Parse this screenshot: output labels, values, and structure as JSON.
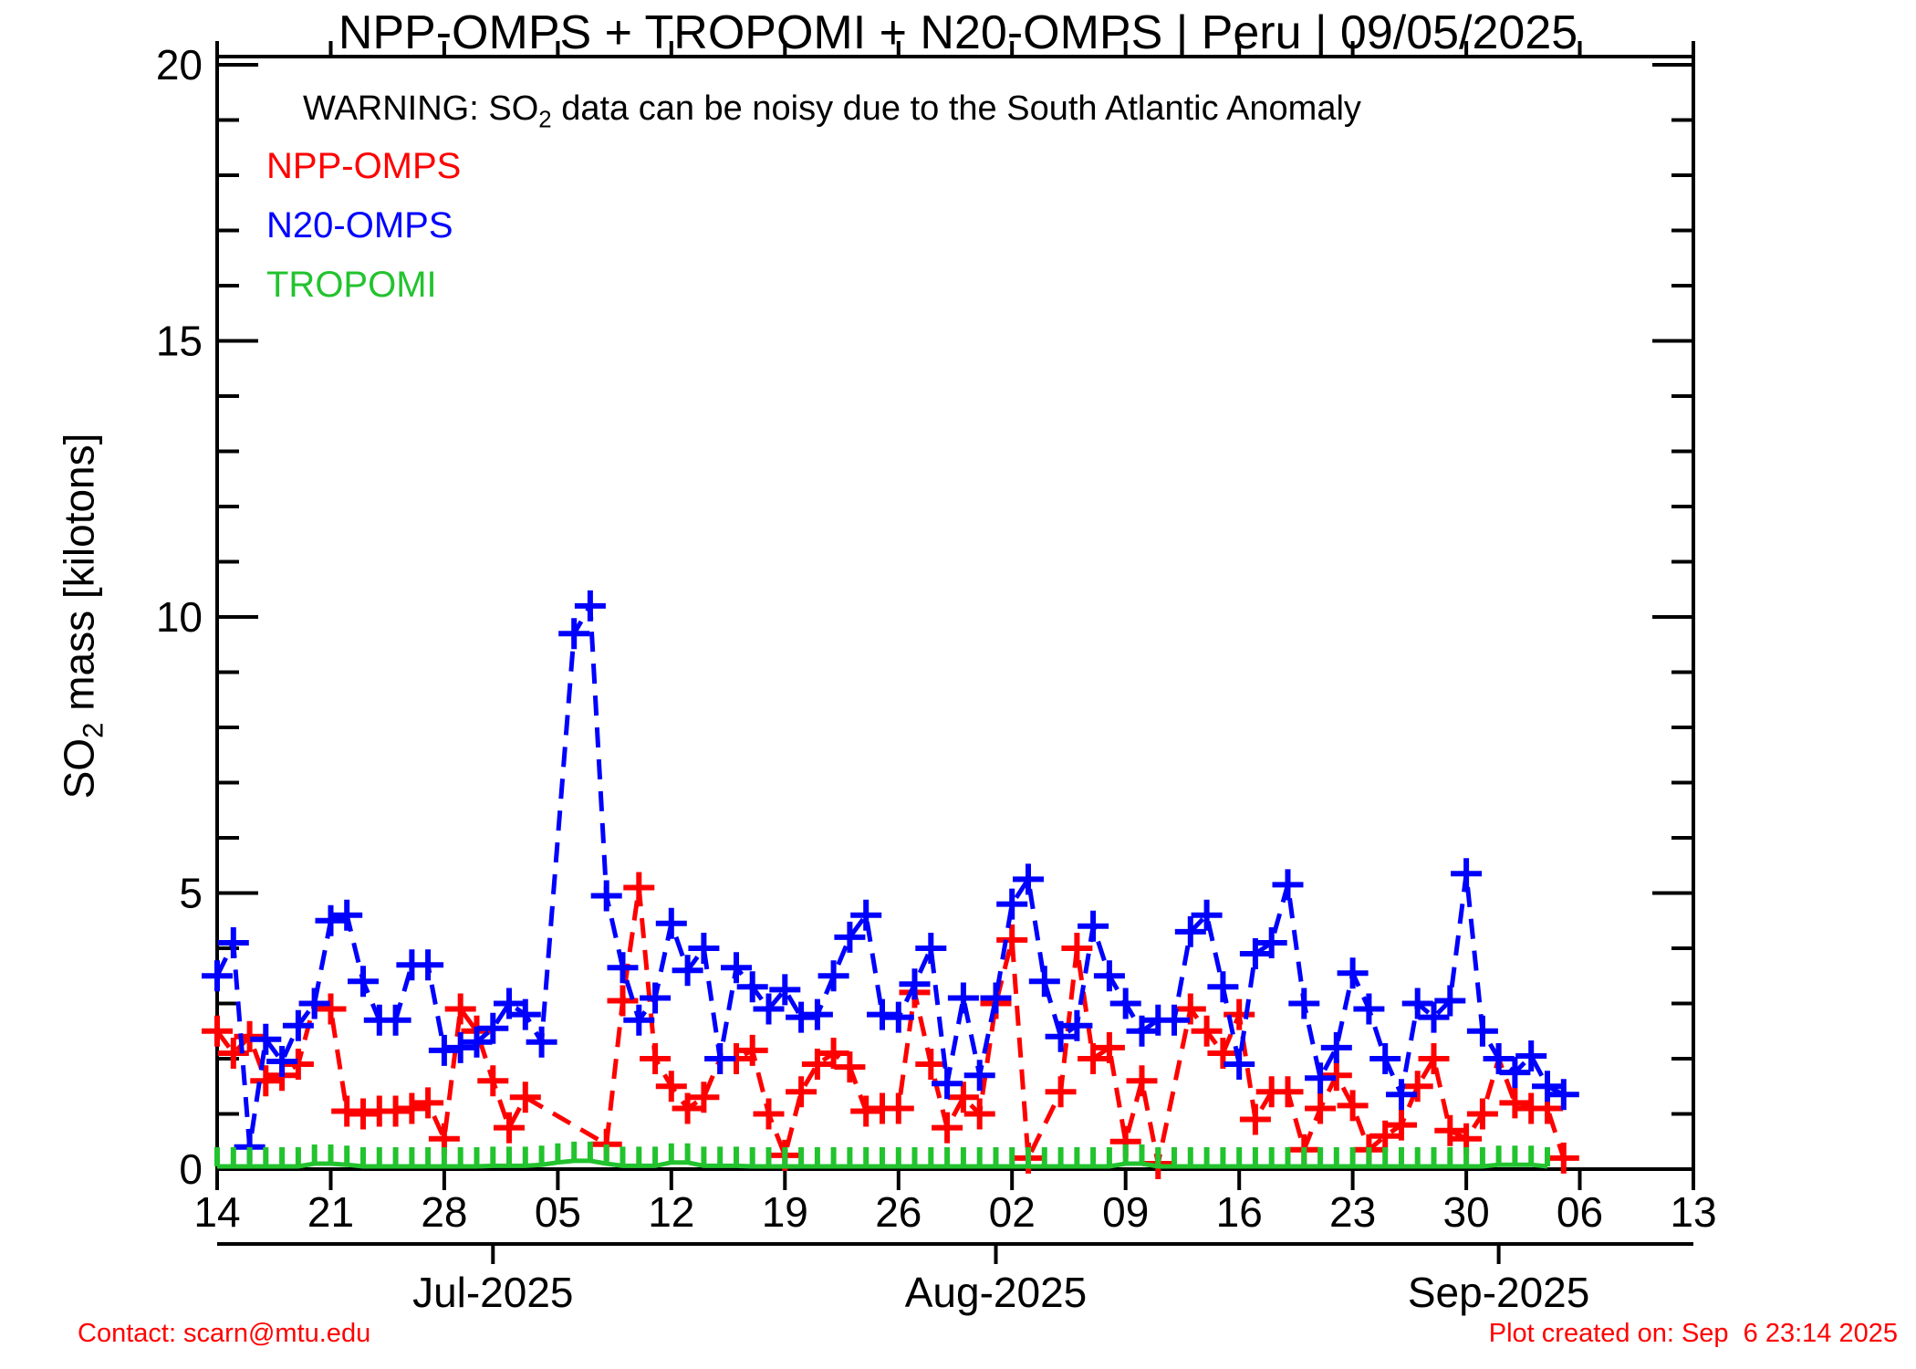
{
  "title": "NPP-OMPS + TROPOMI + N20-OMPS | Peru | 09/05/2025",
  "warning": {
    "prefix": "WARNING: SO",
    "sub": "2",
    "suffix": " data can be noisy due to the South Atlantic Anomaly",
    "color": "#ff0000"
  },
  "legend": {
    "position": "upper-left-inside",
    "items": [
      {
        "label": "NPP-OMPS",
        "color": "#ff0000"
      },
      {
        "label": "N20-OMPS",
        "color": "#0000ff"
      },
      {
        "label": "TROPOMI",
        "color": "#22c32e"
      }
    ]
  },
  "y_axis": {
    "label_prefix": "SO",
    "label_sub": "2",
    "label_suffix": " mass [kilotons]",
    "tick_labels": [
      "0",
      "5",
      "10",
      "15",
      "20"
    ],
    "range": [
      0,
      20
    ]
  },
  "x_axis": {
    "week_tick_labels": [
      "14",
      "21",
      "28",
      "05",
      "12",
      "19",
      "26",
      "02",
      "09",
      "16",
      "23",
      "30",
      "06",
      "13"
    ],
    "month_labels": [
      "Jul-2025",
      "Aug-2025",
      "Sep-2025"
    ]
  },
  "footer": {
    "contact": "Contact: scarn@mtu.edu",
    "created": "Plot created on: Sep  6 23:14 2025",
    "color": "#ff0000"
  },
  "chart_data": {
    "type": "line",
    "title": "NPP-OMPS + TROPOMI + N20-OMPS | Peru | 09/05/2025",
    "xlabel": "",
    "ylabel": "SO2 mass [kilotons]",
    "ylim": [
      0,
      20
    ],
    "x_range_days": [
      "2025-06-14",
      "2025-09-13"
    ],
    "grid": false,
    "legend_position": "upper-left-inside",
    "week_ticks": {
      "labels": [
        "14",
        "21",
        "28",
        "05",
        "12",
        "19",
        "26",
        "02",
        "09",
        "16",
        "23",
        "30",
        "06",
        "13"
      ],
      "day_offsets": [
        0,
        7,
        14,
        21,
        28,
        35,
        42,
        49,
        56,
        63,
        70,
        77,
        84,
        91
      ]
    },
    "month_ticks": [
      {
        "label": "Jul-2025",
        "day_offset": 17
      },
      {
        "label": "Aug-2025",
        "day_offset": 48
      },
      {
        "label": "Sep-2025",
        "day_offset": 79
      }
    ],
    "x_dates": [
      "Jun 14",
      "Jun 15",
      "Jun 16",
      "Jun 17",
      "Jun 18",
      "Jun 19",
      "Jun 20",
      "Jun 21",
      "Jun 22",
      "Jun 23",
      "Jun 24",
      "Jun 25",
      "Jun 26",
      "Jun 27",
      "Jun 28",
      "Jun 29",
      "Jun 30",
      "Jul 01",
      "Jul 02",
      "Jul 03",
      "Jul 04",
      "Jul 05",
      "Jul 06",
      "Jul 07",
      "Jul 08",
      "Jul 09",
      "Jul 10",
      "Jul 11",
      "Jul 12",
      "Jul 13",
      "Jul 14",
      "Jul 15",
      "Jul 16",
      "Jul 17",
      "Jul 18",
      "Jul 19",
      "Jul 20",
      "Jul 21",
      "Jul 22",
      "Jul 23",
      "Jul 24",
      "Jul 25",
      "Jul 26",
      "Jul 27",
      "Jul 28",
      "Jul 29",
      "Jul 30",
      "Jul 31",
      "Aug 01",
      "Aug 02",
      "Aug 03",
      "Aug 04",
      "Aug 05",
      "Aug 06",
      "Aug 07",
      "Aug 08",
      "Aug 09",
      "Aug 10",
      "Aug 11",
      "Aug 12",
      "Aug 13",
      "Aug 14",
      "Aug 15",
      "Aug 16",
      "Aug 17",
      "Aug 18",
      "Aug 19",
      "Aug 20",
      "Aug 21",
      "Aug 22",
      "Aug 23",
      "Aug 24",
      "Aug 25",
      "Aug 26",
      "Aug 27",
      "Aug 28",
      "Aug 29",
      "Aug 30",
      "Aug 31",
      "Sep 01",
      "Sep 02",
      "Sep 03",
      "Sep 04",
      "Sep 05",
      "Sep 06"
    ],
    "series": [
      {
        "name": "NPP-OMPS",
        "color": "#ff0000",
        "marker": "+",
        "linestyle": "dashed",
        "values": [
          2.5,
          2.1,
          2.4,
          1.6,
          1.7,
          1.9,
          3.0,
          2.9,
          1.05,
          1.0,
          1.05,
          1.05,
          1.1,
          1.2,
          0.55,
          2.9,
          2.5,
          1.6,
          0.75,
          1.3,
          null,
          null,
          null,
          null,
          0.45,
          3.05,
          5.1,
          2.0,
          1.5,
          1.1,
          1.3,
          2.0,
          2.0,
          2.15,
          1.0,
          0.25,
          1.4,
          1.9,
          2.1,
          1.85,
          1.05,
          1.1,
          1.1,
          3.2,
          1.9,
          0.75,
          1.3,
          1.0,
          3.0,
          4.15,
          0.2,
          null,
          1.4,
          4.0,
          2.0,
          2.2,
          0.5,
          1.6,
          0.1,
          null,
          2.9,
          2.5,
          2.1,
          2.8,
          0.9,
          1.4,
          1.4,
          0.35,
          1.1,
          1.7,
          1.15,
          0.35,
          0.6,
          0.8,
          1.5,
          2.0,
          0.7,
          0.55,
          1.0,
          2.0,
          1.2,
          1.1,
          1.1,
          0.2,
          null
        ]
      },
      {
        "name": "N20-OMPS",
        "color": "#0000ff",
        "marker": "+",
        "linestyle": "dashed",
        "values": [
          3.5,
          4.1,
          0.4,
          2.35,
          1.95,
          2.6,
          3.0,
          4.5,
          4.6,
          3.4,
          2.7,
          2.7,
          3.7,
          3.7,
          2.15,
          2.2,
          2.3,
          2.55,
          3.0,
          2.8,
          2.3,
          null,
          9.7,
          10.2,
          4.95,
          3.65,
          2.7,
          3.1,
          4.45,
          3.6,
          4.0,
          2.0,
          3.65,
          3.3,
          2.9,
          3.25,
          2.75,
          2.8,
          3.5,
          4.2,
          4.6,
          2.8,
          2.75,
          3.35,
          4.0,
          1.55,
          3.1,
          1.7,
          3.1,
          4.8,
          5.25,
          3.4,
          2.4,
          2.6,
          4.4,
          3.5,
          3.0,
          2.5,
          2.7,
          2.7,
          4.3,
          4.6,
          3.3,
          1.9,
          3.9,
          4.1,
          5.15,
          3.0,
          1.65,
          2.2,
          3.55,
          2.9,
          2.0,
          1.35,
          3.0,
          2.75,
          3.05,
          5.35,
          2.5,
          2.0,
          1.75,
          2.05,
          1.5,
          1.35,
          null
        ]
      },
      {
        "name": "TROPOMI",
        "color": "#22c32e",
        "marker": "|",
        "linestyle": "solid",
        "values": [
          0.05,
          0.05,
          0.05,
          0.05,
          0.05,
          0.05,
          0.1,
          0.1,
          0.08,
          0.05,
          0.05,
          0.05,
          0.05,
          0.05,
          0.05,
          0.05,
          0.05,
          0.06,
          0.06,
          0.06,
          0.08,
          0.12,
          0.15,
          0.15,
          0.1,
          0.06,
          0.06,
          0.06,
          0.12,
          0.12,
          0.06,
          0.06,
          0.06,
          0.05,
          0.05,
          0.05,
          0.05,
          0.05,
          0.05,
          0.05,
          0.05,
          0.05,
          0.05,
          0.05,
          0.05,
          0.05,
          0.05,
          0.05,
          0.05,
          0.05,
          0.05,
          0.05,
          0.05,
          0.05,
          0.05,
          0.05,
          0.1,
          0.1,
          0.05,
          0.05,
          0.05,
          0.05,
          0.05,
          0.05,
          0.05,
          0.05,
          0.05,
          0.05,
          0.05,
          0.05,
          0.05,
          0.05,
          0.05,
          0.05,
          0.05,
          0.05,
          0.05,
          0.05,
          0.05,
          0.08,
          0.08,
          0.08,
          0.05,
          null,
          null
        ]
      }
    ]
  }
}
